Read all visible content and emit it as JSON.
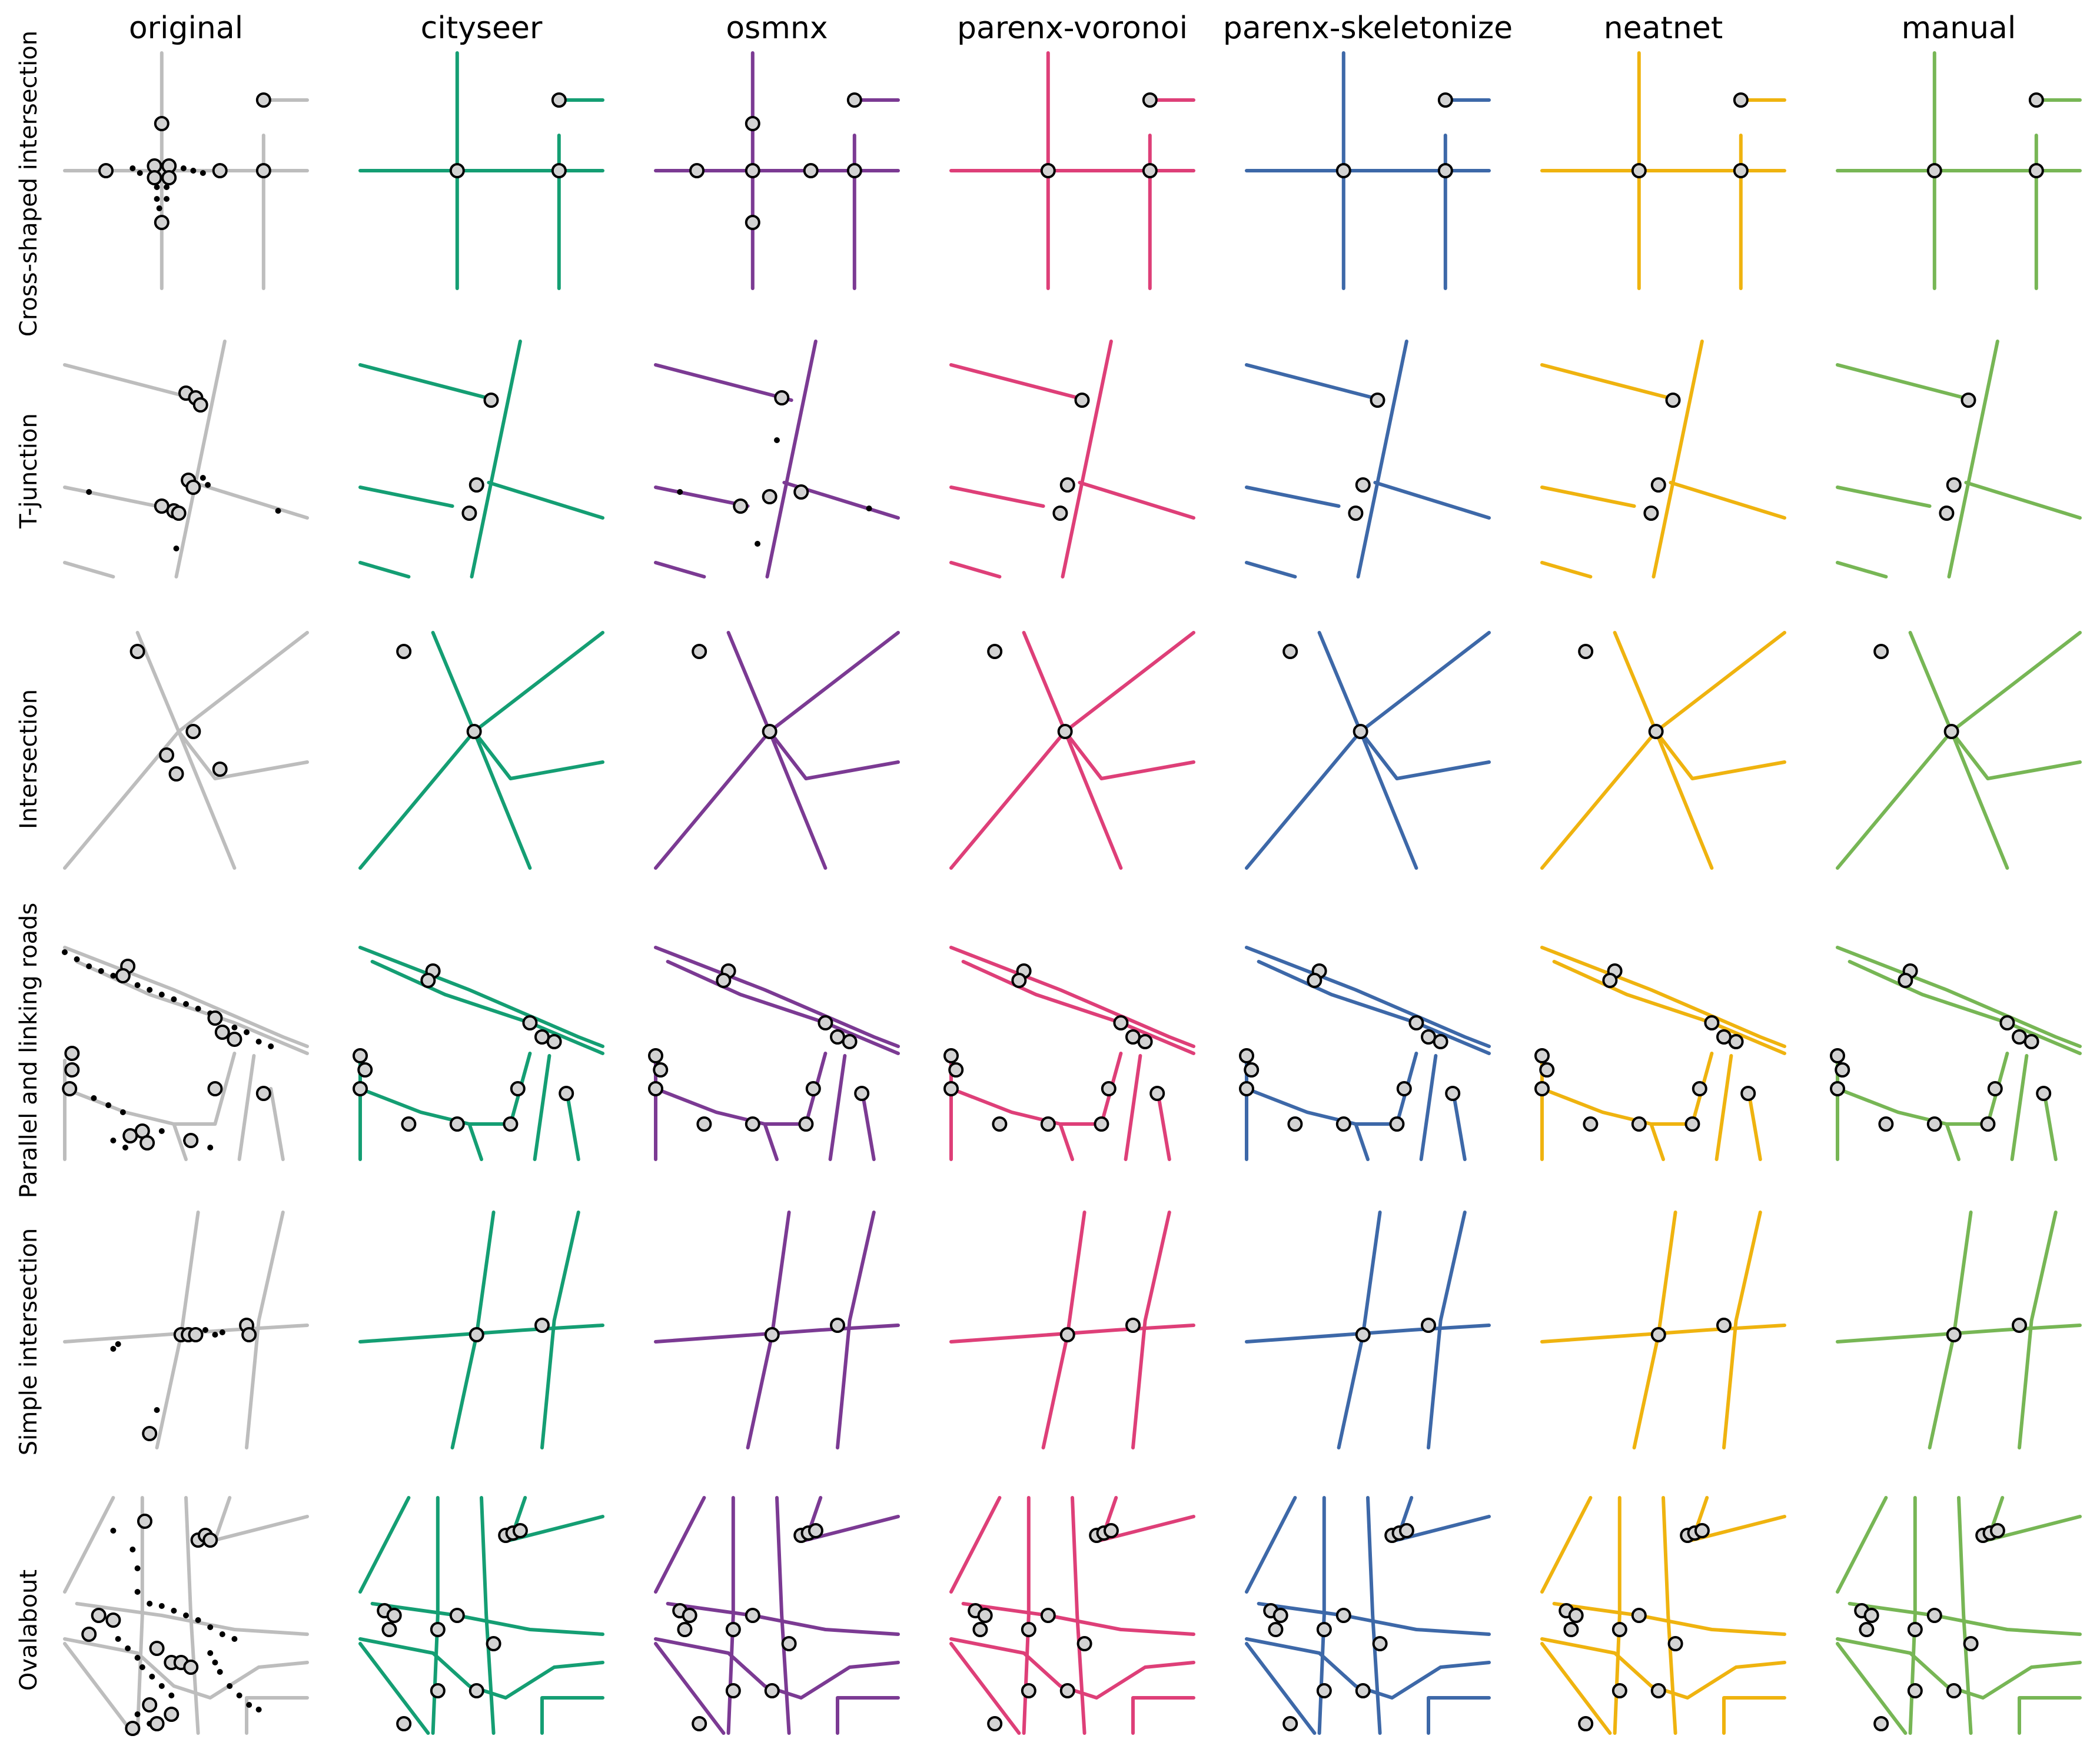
{
  "figure": {
    "columns": [
      "original",
      "cityseer",
      "osmnx",
      "parenx-voronoi",
      "parenx-skeletonize",
      "neatnet",
      "manual"
    ],
    "rows": [
      "Cross-shaped intersection",
      "T-junction",
      "Intersection",
      "Parallel and linking roads",
      "Simple intersection",
      "Ovalabout"
    ]
  },
  "colors": {
    "original": "#bdbdbd",
    "cityseer": "#149e73",
    "osmnx": "#7b3a93",
    "parenx-voronoi": "#de3f78",
    "parenx-skeletonize": "#3d68a8",
    "neatnet": "#efb30f",
    "manual": "#77b655",
    "node_fill": "#d3d3d3",
    "node_edge": "#000000",
    "vertex": "#000000"
  },
  "legend": "none",
  "axes": "off"
}
